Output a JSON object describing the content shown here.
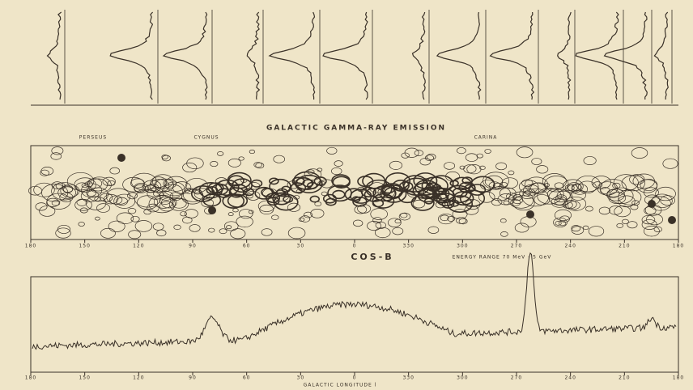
{
  "header": {
    "title": "GALACTIC GAMMA-RAY EMISSION",
    "regions": [
      "PERSEUS",
      "CYGNUS",
      "CARINA"
    ]
  },
  "map": {
    "instrument": "COS-B",
    "energy": "ENERGY RANGE 70 MeV - 5 GeV"
  },
  "axis": {
    "title": "GALACTIC LONGITUDE l",
    "labels": [
      "180",
      "150",
      "120",
      "90",
      "60",
      "30",
      "0",
      "330",
      "300",
      "270",
      "240",
      "210",
      "180"
    ]
  }
}
